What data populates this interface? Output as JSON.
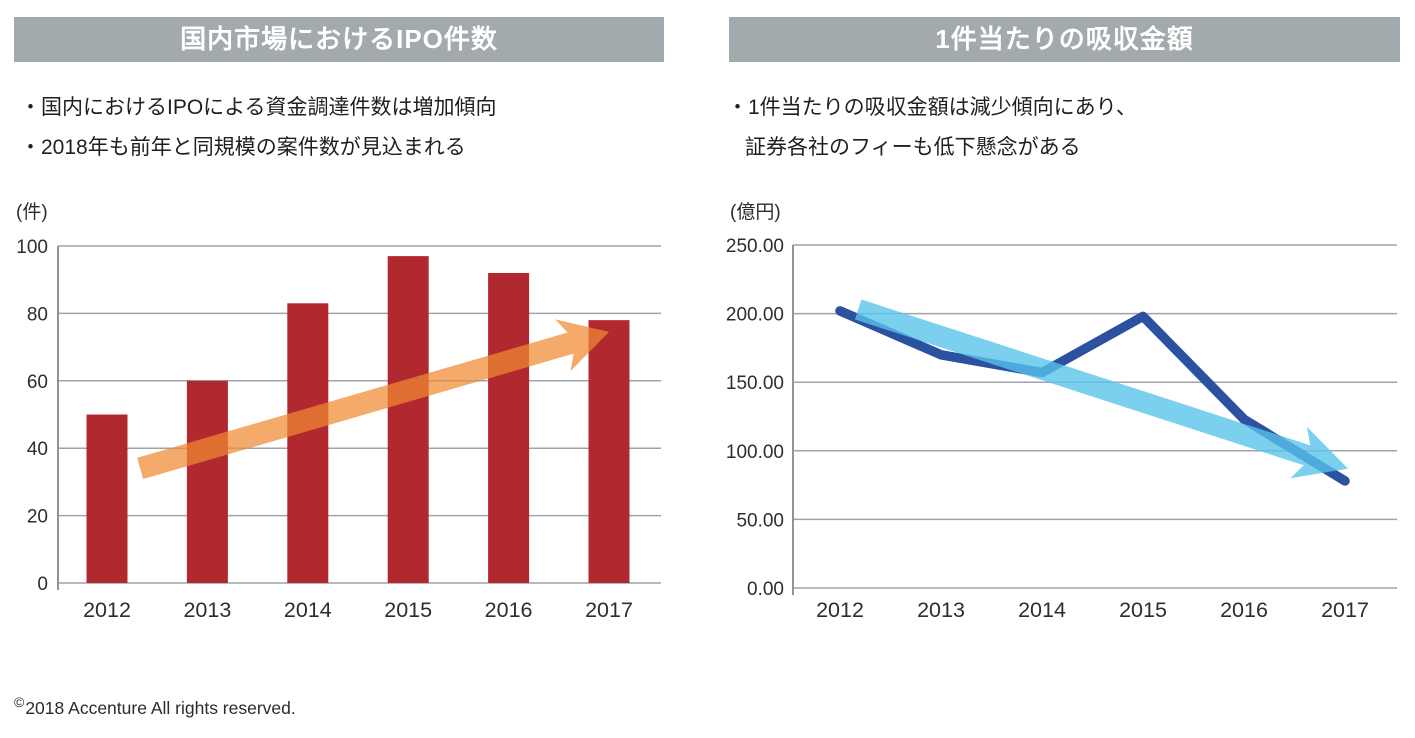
{
  "colors": {
    "header_bg": "#A2AAAE",
    "bar_red": "#B2282F",
    "arrow_orange": "#F08A32",
    "line_navy": "#2B51A0",
    "arrow_lightblue": "#58C3EB",
    "gridline": "#9EA4A9",
    "axis_line": "#8E959A",
    "tick_text": "#2D2D2D"
  },
  "left_panel": {
    "title": "国内市場におけるIPO件数",
    "bullets": [
      "・国内におけるIPOによる資金調達件数は増加傾向",
      "・2018年も前年と同規模の案件数が見込まれる"
    ]
  },
  "right_panel": {
    "title": "1件当たりの吸収金額",
    "bullets": [
      "・1件当たりの吸収金額は減少傾向にあり、",
      "証券各社のフィーも低下懸念がある"
    ]
  },
  "footer": {
    "symbol": "©",
    "text": "2018 Accenture All rights reserved."
  },
  "chart_data": [
    {
      "type": "bar",
      "title": "国内市場におけるIPO件数",
      "unit_label": "(件)",
      "categories": [
        "2012",
        "2013",
        "2014",
        "2015",
        "2016",
        "2017"
      ],
      "values": [
        50,
        60,
        83,
        97,
        92,
        78
      ],
      "xlabel": "",
      "ylabel": "(件)",
      "ylim": [
        0,
        100
      ],
      "ytick_step": 20,
      "ytick_labels": [
        "0",
        "20",
        "40",
        "60",
        "80",
        "100"
      ],
      "grid": true,
      "legend": "none",
      "bar_color": "#B2282F",
      "annotation": {
        "type": "trend-arrow",
        "direction": "up",
        "color": "#F08A32",
        "opacity": 0.72,
        "from_index": 0.33,
        "from_value": 34,
        "to_index": 5.0,
        "to_value": 74.5
      }
    },
    {
      "type": "line",
      "title": "1件当たりの吸収金額",
      "unit_label": "(億円)",
      "categories": [
        "2012",
        "2013",
        "2014",
        "2015",
        "2016",
        "2017"
      ],
      "values": [
        202,
        170,
        157,
        198,
        123,
        78
      ],
      "xlabel": "",
      "ylabel": "(億円)",
      "ylim": [
        0,
        250
      ],
      "ytick_step": 50,
      "ytick_labels": [
        "0.00",
        "50.00",
        "100.00",
        "150.00",
        "200.00",
        "250.00"
      ],
      "grid": true,
      "legend": "none",
      "line_color": "#2B51A0",
      "annotation": {
        "type": "trend-arrow",
        "direction": "down",
        "color": "#58C3EB",
        "opacity": 0.78,
        "from_index": 0.18,
        "from_value": 203,
        "to_index": 5.03,
        "to_value": 87
      }
    }
  ]
}
